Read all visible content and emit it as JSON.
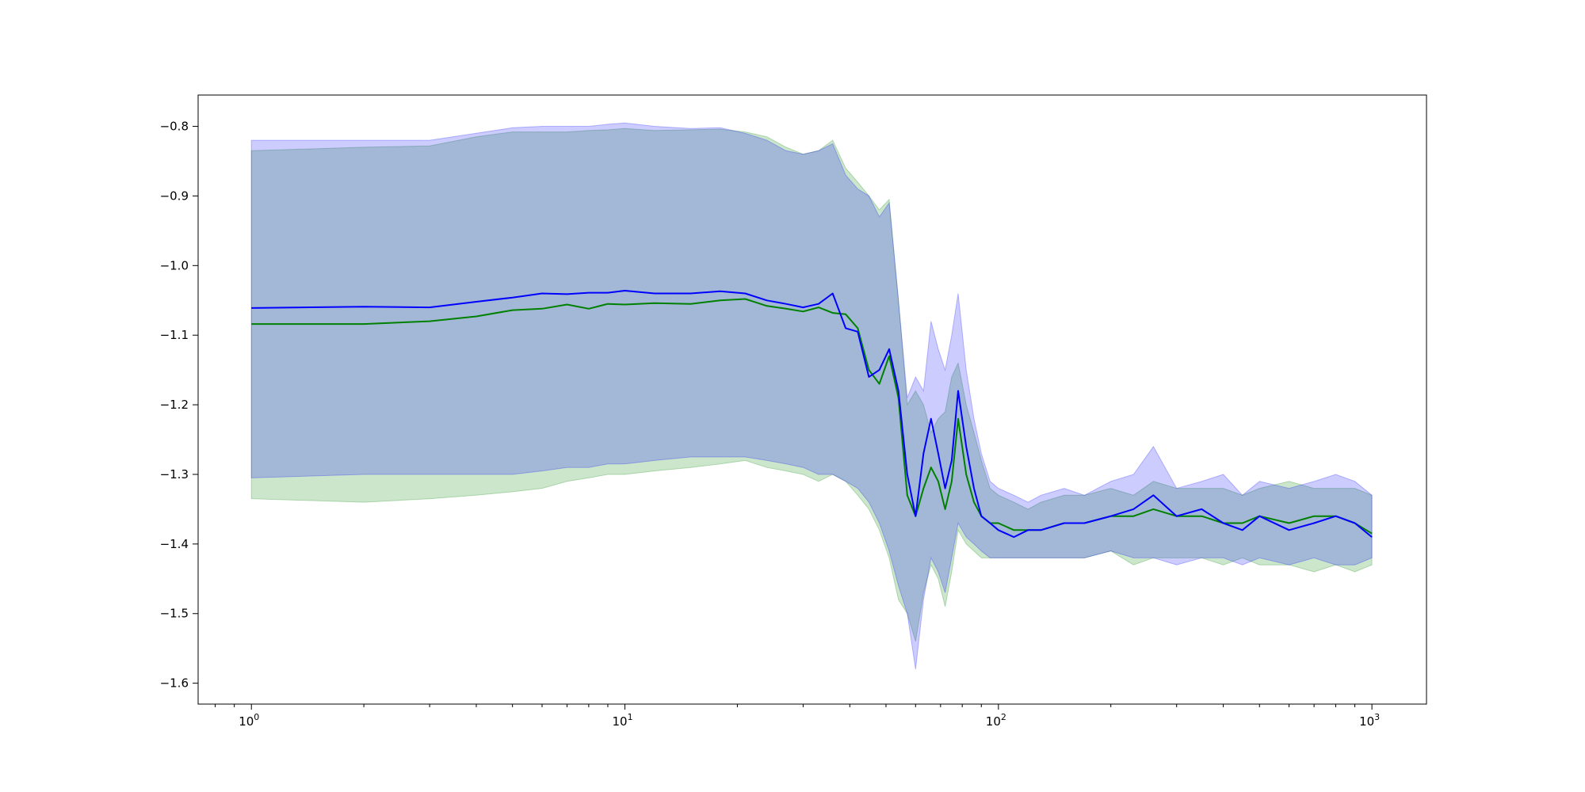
{
  "chart_data": {
    "type": "line",
    "title": "",
    "xlabel": "",
    "ylabel": "",
    "x_scale": "log",
    "xlim": [
      0.72,
      1400
    ],
    "ylim": [
      -1.63,
      -0.755
    ],
    "grid": false,
    "legend": "none",
    "x_ticks": [
      {
        "value": 1,
        "base": "10",
        "exp": "0"
      },
      {
        "value": 10,
        "base": "10",
        "exp": "1"
      },
      {
        "value": 100,
        "base": "10",
        "exp": "2"
      },
      {
        "value": 1000,
        "base": "10",
        "exp": "3"
      }
    ],
    "y_ticks": [
      {
        "value": -0.8,
        "label": "−0.8"
      },
      {
        "value": -0.9,
        "label": "−0.9"
      },
      {
        "value": -1.0,
        "label": "−1.0"
      },
      {
        "value": -1.1,
        "label": "−1.1"
      },
      {
        "value": -1.2,
        "label": "−1.2"
      },
      {
        "value": -1.3,
        "label": "−1.3"
      },
      {
        "value": -1.4,
        "label": "−1.4"
      },
      {
        "value": -1.5,
        "label": "−1.5"
      },
      {
        "value": -1.6,
        "label": "−1.6"
      }
    ],
    "series": [
      {
        "color": "#008000",
        "band_color": "#008000",
        "x": [
          1,
          2,
          3,
          4,
          5,
          6,
          7,
          8,
          9,
          10,
          12,
          15,
          18,
          21,
          24,
          27,
          30,
          33,
          36,
          39,
          42,
          45,
          48,
          51,
          54,
          57,
          60,
          63,
          66,
          69,
          72,
          75,
          78,
          82,
          86,
          90,
          95,
          100,
          110,
          120,
          130,
          150,
          170,
          200,
          230,
          260,
          300,
          350,
          400,
          450,
          500,
          600,
          700,
          800,
          900,
          1000
        ],
        "y": [
          -1.084,
          -1.084,
          -1.08,
          -1.073,
          -1.064,
          -1.062,
          -1.056,
          -1.062,
          -1.055,
          -1.056,
          -1.054,
          -1.055,
          -1.05,
          -1.048,
          -1.058,
          -1.062,
          -1.066,
          -1.06,
          -1.068,
          -1.07,
          -1.09,
          -1.15,
          -1.17,
          -1.13,
          -1.19,
          -1.33,
          -1.36,
          -1.32,
          -1.29,
          -1.31,
          -1.35,
          -1.31,
          -1.22,
          -1.3,
          -1.34,
          -1.36,
          -1.37,
          -1.37,
          -1.38,
          -1.38,
          -1.38,
          -1.37,
          -1.37,
          -1.36,
          -1.36,
          -1.35,
          -1.36,
          -1.36,
          -1.37,
          -1.37,
          -1.36,
          -1.37,
          -1.36,
          -1.36,
          -1.37,
          -1.385
        ],
        "upper": [
          -0.835,
          -0.83,
          -0.828,
          -0.815,
          -0.808,
          -0.808,
          -0.808,
          -0.806,
          -0.805,
          -0.803,
          -0.806,
          -0.805,
          -0.804,
          -0.808,
          -0.815,
          -0.83,
          -0.84,
          -0.835,
          -0.82,
          -0.86,
          -0.88,
          -0.9,
          -0.92,
          -0.905,
          -1.05,
          -1.2,
          -1.18,
          -1.2,
          -1.24,
          -1.22,
          -1.21,
          -1.16,
          -1.14,
          -1.2,
          -1.24,
          -1.28,
          -1.32,
          -1.33,
          -1.34,
          -1.35,
          -1.34,
          -1.33,
          -1.33,
          -1.32,
          -1.33,
          -1.31,
          -1.32,
          -1.32,
          -1.32,
          -1.33,
          -1.32,
          -1.31,
          -1.32,
          -1.32,
          -1.32,
          -1.33
        ],
        "lower": [
          -1.335,
          -1.34,
          -1.335,
          -1.33,
          -1.325,
          -1.32,
          -1.31,
          -1.305,
          -1.3,
          -1.3,
          -1.295,
          -1.29,
          -1.285,
          -1.28,
          -1.29,
          -1.295,
          -1.3,
          -1.31,
          -1.3,
          -1.31,
          -1.33,
          -1.35,
          -1.38,
          -1.42,
          -1.48,
          -1.5,
          -1.54,
          -1.47,
          -1.43,
          -1.45,
          -1.49,
          -1.44,
          -1.38,
          -1.4,
          -1.41,
          -1.42,
          -1.42,
          -1.42,
          -1.42,
          -1.42,
          -1.42,
          -1.42,
          -1.42,
          -1.41,
          -1.43,
          -1.42,
          -1.42,
          -1.42,
          -1.43,
          -1.42,
          -1.43,
          -1.43,
          -1.44,
          -1.43,
          -1.44,
          -1.43
        ]
      },
      {
        "color": "#0000ff",
        "band_color": "#0000ff",
        "x": [
          1,
          2,
          3,
          4,
          5,
          6,
          7,
          8,
          9,
          10,
          12,
          15,
          18,
          21,
          24,
          27,
          30,
          33,
          36,
          39,
          42,
          45,
          48,
          51,
          54,
          57,
          60,
          63,
          66,
          69,
          72,
          75,
          78,
          82,
          86,
          90,
          95,
          100,
          110,
          120,
          130,
          150,
          170,
          200,
          230,
          260,
          300,
          350,
          400,
          450,
          500,
          600,
          700,
          800,
          900,
          1000
        ],
        "y": [
          -1.061,
          -1.059,
          -1.06,
          -1.052,
          -1.046,
          -1.04,
          -1.041,
          -1.039,
          -1.039,
          -1.036,
          -1.04,
          -1.04,
          -1.037,
          -1.04,
          -1.05,
          -1.055,
          -1.06,
          -1.055,
          -1.04,
          -1.09,
          -1.095,
          -1.16,
          -1.15,
          -1.12,
          -1.18,
          -1.3,
          -1.36,
          -1.27,
          -1.22,
          -1.27,
          -1.32,
          -1.28,
          -1.18,
          -1.26,
          -1.32,
          -1.36,
          -1.37,
          -1.38,
          -1.39,
          -1.38,
          -1.38,
          -1.37,
          -1.37,
          -1.36,
          -1.35,
          -1.33,
          -1.36,
          -1.35,
          -1.37,
          -1.38,
          -1.36,
          -1.38,
          -1.37,
          -1.36,
          -1.37,
          -1.39
        ],
        "upper": [
          -0.82,
          -0.82,
          -0.82,
          -0.81,
          -0.802,
          -0.8,
          -0.8,
          -0.8,
          -0.797,
          -0.795,
          -0.8,
          -0.803,
          -0.802,
          -0.81,
          -0.82,
          -0.835,
          -0.84,
          -0.835,
          -0.825,
          -0.87,
          -0.89,
          -0.9,
          -0.93,
          -0.91,
          -1.05,
          -1.19,
          -1.16,
          -1.18,
          -1.08,
          -1.12,
          -1.15,
          -1.1,
          -1.04,
          -1.15,
          -1.22,
          -1.27,
          -1.31,
          -1.32,
          -1.33,
          -1.34,
          -1.33,
          -1.32,
          -1.33,
          -1.31,
          -1.3,
          -1.26,
          -1.32,
          -1.31,
          -1.3,
          -1.33,
          -1.31,
          -1.32,
          -1.31,
          -1.3,
          -1.31,
          -1.33
        ],
        "lower": [
          -1.305,
          -1.3,
          -1.3,
          -1.3,
          -1.3,
          -1.295,
          -1.29,
          -1.29,
          -1.285,
          -1.285,
          -1.28,
          -1.275,
          -1.275,
          -1.275,
          -1.28,
          -1.285,
          -1.29,
          -1.3,
          -1.3,
          -1.31,
          -1.32,
          -1.34,
          -1.37,
          -1.41,
          -1.46,
          -1.5,
          -1.58,
          -1.48,
          -1.42,
          -1.44,
          -1.47,
          -1.42,
          -1.37,
          -1.39,
          -1.4,
          -1.41,
          -1.42,
          -1.42,
          -1.42,
          -1.42,
          -1.42,
          -1.42,
          -1.42,
          -1.41,
          -1.42,
          -1.42,
          -1.43,
          -1.42,
          -1.42,
          -1.43,
          -1.42,
          -1.43,
          -1.42,
          -1.43,
          -1.43,
          -1.42
        ]
      }
    ]
  }
}
